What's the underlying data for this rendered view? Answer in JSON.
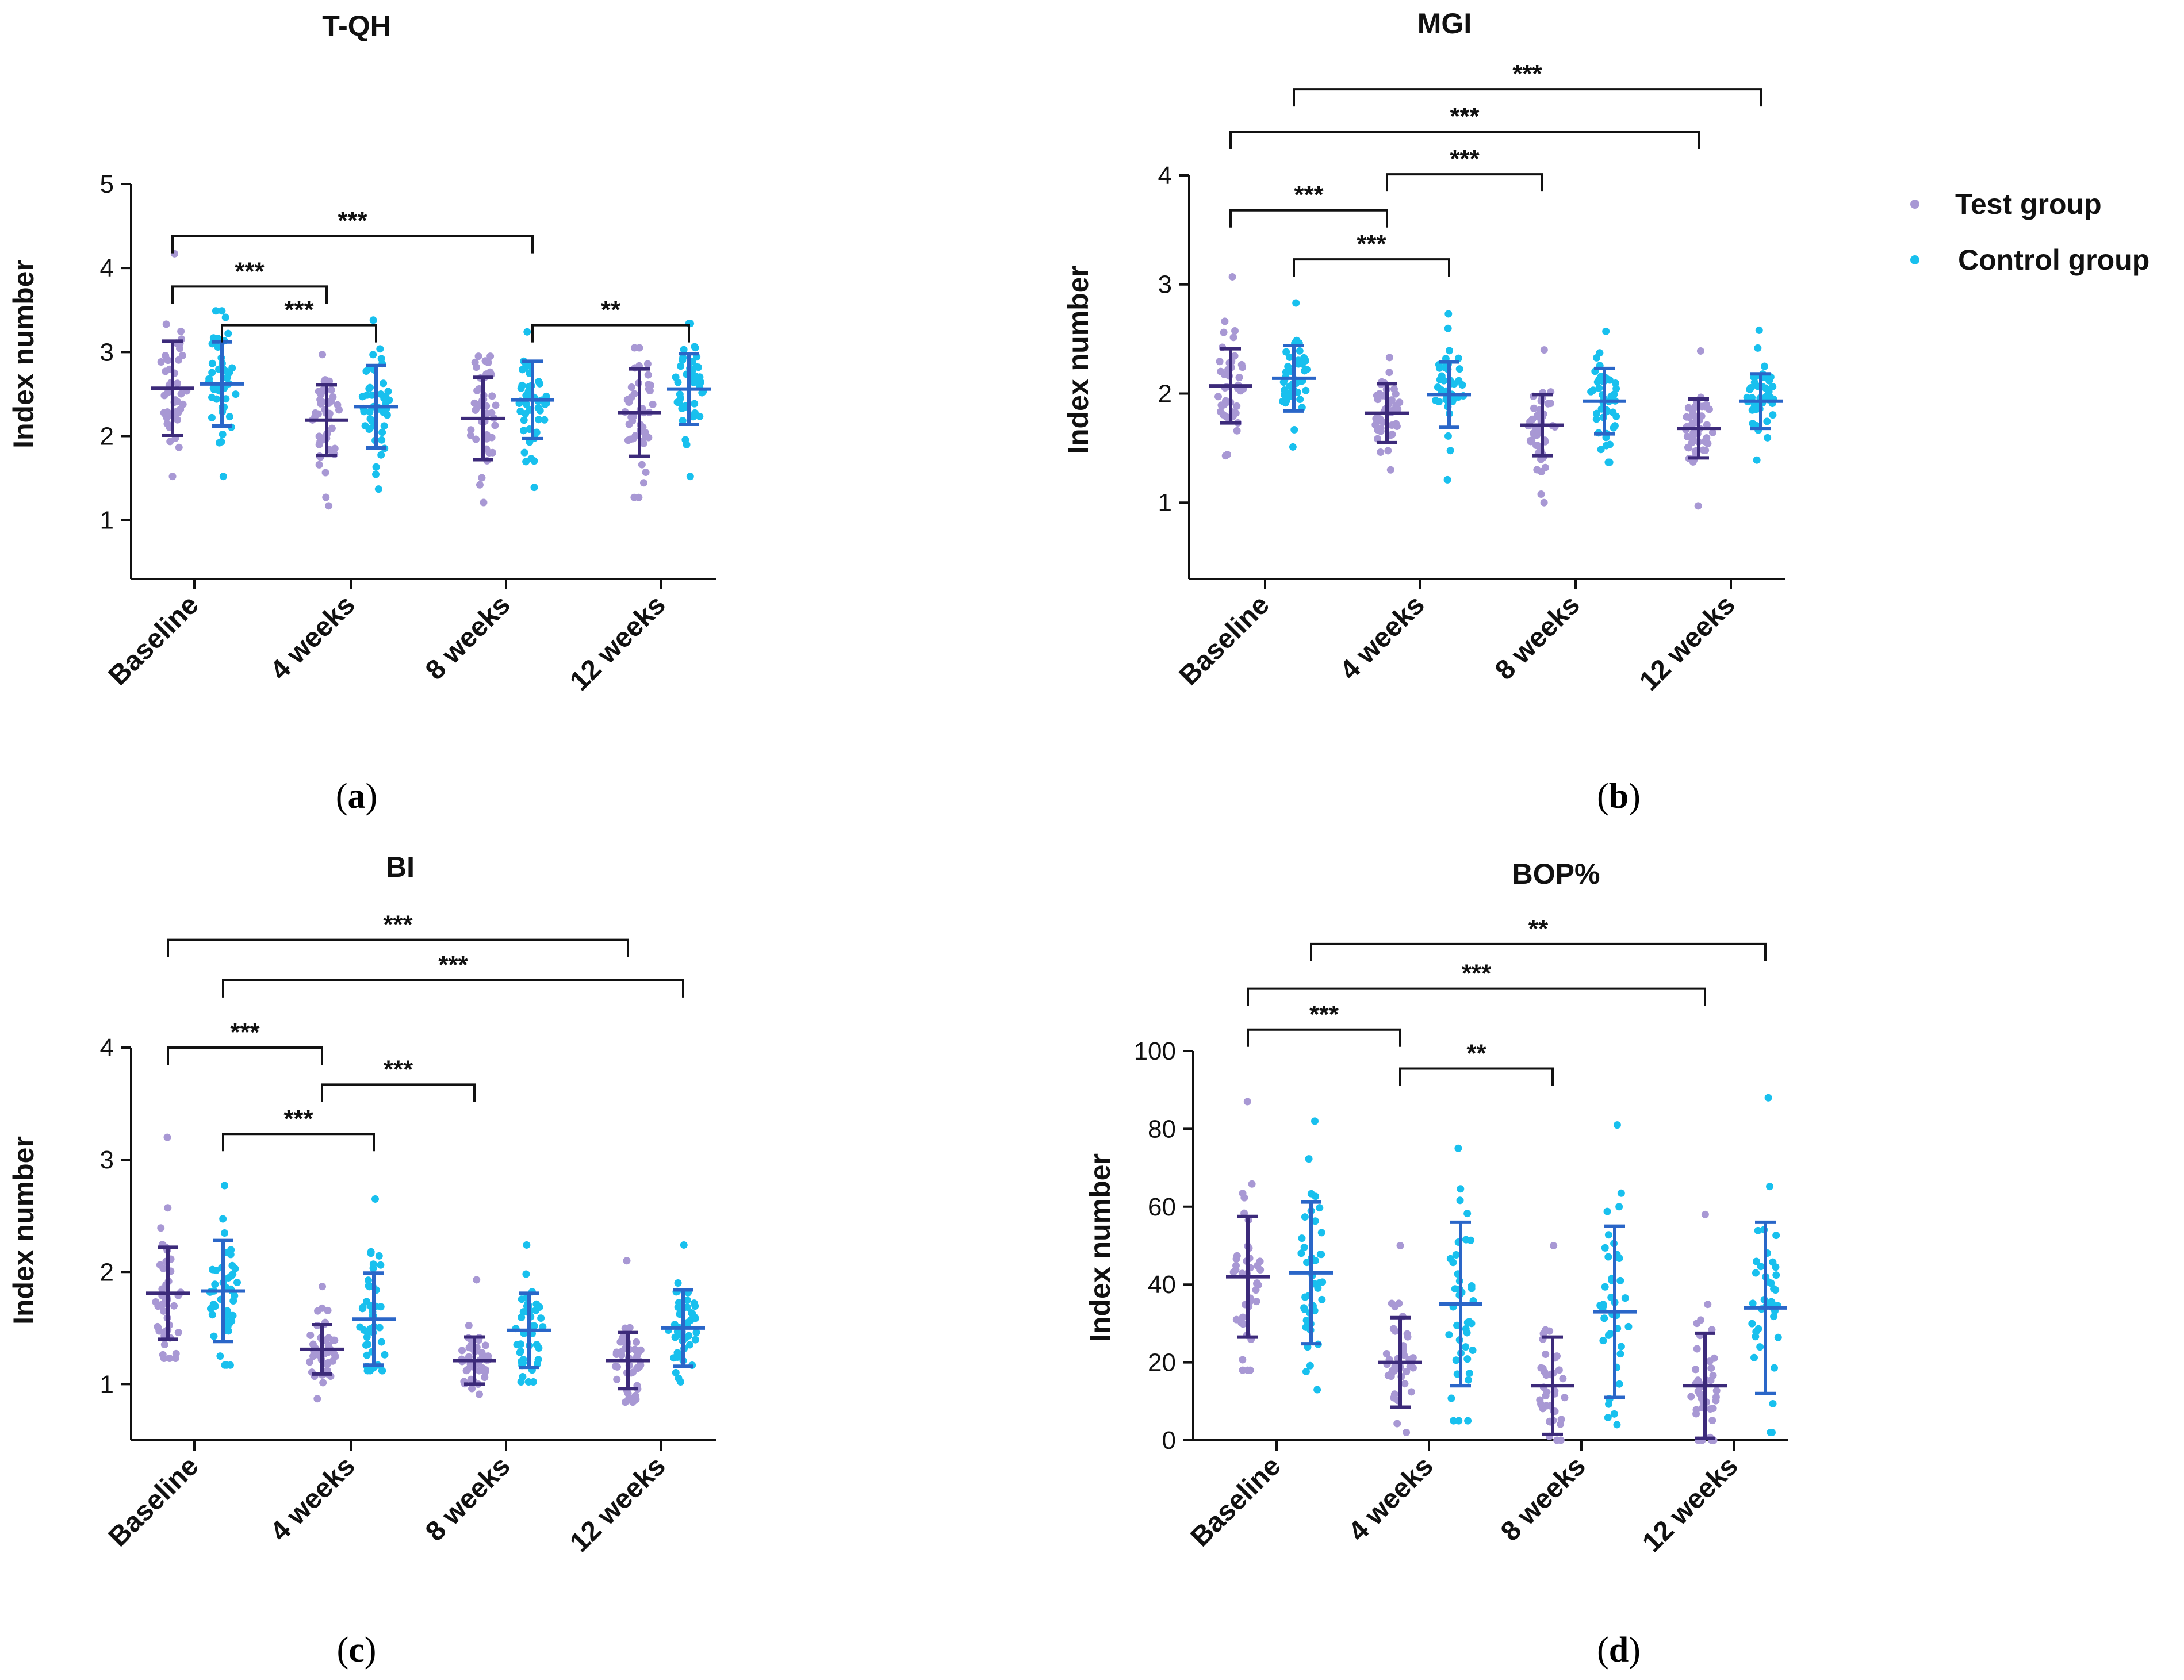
{
  "legend": {
    "items": [
      {
        "label": "Test group",
        "color": "#a898d4",
        "mean_color": "#3c2a7a"
      },
      {
        "label": "Control group",
        "color": "#18c0ee",
        "mean_color": "#2a66c8"
      }
    ]
  },
  "chart_data": [
    {
      "id": "a",
      "caption": "a",
      "type": "scatter",
      "title": "T-QH",
      "ylabel": "Index number",
      "ylim": [
        0.3,
        5
      ],
      "yticks": [
        1,
        2,
        3,
        4,
        5
      ],
      "categories": [
        "Baseline",
        "4 weeks",
        "8 weeks",
        "12 weeks"
      ],
      "series": [
        {
          "name": "Test group",
          "mean": [
            2.57,
            2.19,
            2.21,
            2.28
          ],
          "sd": [
            0.56,
            0.42,
            0.49,
            0.52
          ],
          "min": [
            1.52,
            1.17,
            1.21,
            1.27
          ],
          "max": [
            4.17,
            2.97,
            2.95,
            3.05
          ]
        },
        {
          "name": "Control group",
          "mean": [
            2.62,
            2.35,
            2.43,
            2.56
          ],
          "sd": [
            0.5,
            0.49,
            0.46,
            0.42
          ],
          "min": [
            1.52,
            1.37,
            1.39,
            1.52
          ],
          "max": [
            3.49,
            3.38,
            3.24,
            3.34
          ]
        }
      ],
      "significance": [
        {
          "label": "***",
          "from": [
            0,
            0
          ],
          "to": [
            2,
            1
          ],
          "y": 4.38
        },
        {
          "label": "***",
          "from": [
            0,
            0
          ],
          "to": [
            1,
            0
          ],
          "y": 3.78
        },
        {
          "label": "***",
          "from": [
            0,
            1
          ],
          "to": [
            1,
            1
          ],
          "y": 3.32
        },
        {
          "label": "**",
          "from": [
            2,
            1
          ],
          "to": [
            3,
            1
          ],
          "y": 3.32
        }
      ]
    },
    {
      "id": "b",
      "caption": "b",
      "type": "scatter",
      "title": "MGI",
      "ylabel": "Index number",
      "ylim": [
        0.3,
        4
      ],
      "yticks": [
        1,
        2,
        3,
        4
      ],
      "categories": [
        "Baseline",
        "4 weeks",
        "8 weeks",
        "12 weeks"
      ],
      "series": [
        {
          "name": "Test group",
          "mean": [
            2.07,
            1.82,
            1.71,
            1.68
          ],
          "sd": [
            0.34,
            0.27,
            0.28,
            0.27
          ],
          "min": [
            1.43,
            1.3,
            1.0,
            0.97
          ],
          "max": [
            3.07,
            2.33,
            2.4,
            2.39
          ]
        },
        {
          "name": "Control group",
          "mean": [
            2.14,
            1.99,
            1.93,
            1.93
          ],
          "sd": [
            0.3,
            0.3,
            0.3,
            0.25
          ],
          "min": [
            1.51,
            1.21,
            1.37,
            1.39
          ],
          "max": [
            2.83,
            2.73,
            2.57,
            2.58
          ]
        }
      ],
      "significance": [
        {
          "label": "***",
          "from": [
            0,
            1
          ],
          "to": [
            3,
            1
          ],
          "y": 4.79
        },
        {
          "label": "***",
          "from": [
            0,
            0
          ],
          "to": [
            3,
            0
          ],
          "y": 4.4
        },
        {
          "label": "***",
          "from": [
            1,
            0
          ],
          "to": [
            2,
            0
          ],
          "y": 4.01
        },
        {
          "label": "***",
          "from": [
            0,
            0
          ],
          "to": [
            1,
            0
          ],
          "y": 3.68
        },
        {
          "label": "***",
          "from": [
            0,
            1
          ],
          "to": [
            1,
            1
          ],
          "y": 3.23
        }
      ]
    },
    {
      "id": "c",
      "caption": "c",
      "type": "scatter",
      "title": "BI",
      "ylabel": "Index number",
      "ylim": [
        0.5,
        4
      ],
      "yticks": [
        1,
        2,
        3,
        4
      ],
      "categories": [
        "Baseline",
        "4 weeks",
        "8 weeks",
        "12 weeks"
      ],
      "series": [
        {
          "name": "Test group",
          "mean": [
            1.81,
            1.31,
            1.21,
            1.21
          ],
          "sd": [
            0.41,
            0.22,
            0.21,
            0.25
          ],
          "min": [
            1.23,
            0.87,
            0.91,
            0.84
          ],
          "max": [
            3.2,
            1.87,
            1.93,
            2.1
          ]
        },
        {
          "name": "Control group",
          "mean": [
            1.83,
            1.58,
            1.48,
            1.5
          ],
          "sd": [
            0.45,
            0.41,
            0.33,
            0.34
          ],
          "min": [
            1.17,
            1.12,
            1.02,
            1.02
          ],
          "max": [
            2.77,
            2.65,
            2.24,
            2.24
          ]
        }
      ],
      "significance": [
        {
          "label": "***",
          "from": [
            0,
            0
          ],
          "to": [
            3,
            0
          ],
          "y": 4.96
        },
        {
          "label": "***",
          "from": [
            0,
            1
          ],
          "to": [
            3,
            1
          ],
          "y": 4.6
        },
        {
          "label": "***",
          "from": [
            0,
            0
          ],
          "to": [
            1,
            0
          ],
          "y": 4.0
        },
        {
          "label": "***",
          "from": [
            1,
            0
          ],
          "to": [
            2,
            0
          ],
          "y": 3.67
        },
        {
          "label": "***",
          "from": [
            0,
            1
          ],
          "to": [
            1,
            1
          ],
          "y": 3.23
        }
      ]
    },
    {
      "id": "d",
      "caption": "d",
      "type": "scatter",
      "title": "BOP%",
      "ylabel": "Index number",
      "ylim": [
        0,
        100
      ],
      "yticks": [
        0,
        20,
        40,
        60,
        80,
        100
      ],
      "categories": [
        "Baseline",
        "4 weeks",
        "8 weeks",
        "12 weeks"
      ],
      "series": [
        {
          "name": "Test group",
          "mean": [
            42,
            20,
            14,
            14
          ],
          "sd": [
            15.5,
            11.5,
            12.5,
            13.5
          ],
          "min": [
            18,
            2,
            0,
            0
          ],
          "max": [
            87,
            50,
            50,
            58
          ]
        },
        {
          "name": "Control group",
          "mean": [
            43,
            35,
            33,
            34
          ],
          "sd": [
            18.2,
            21,
            22,
            22
          ],
          "min": [
            13,
            5,
            4,
            2
          ],
          "max": [
            82,
            75,
            81,
            88
          ]
        }
      ],
      "significance": [
        {
          "label": "**",
          "from": [
            0,
            1
          ],
          "to": [
            3,
            1
          ],
          "y": 127.5
        },
        {
          "label": "***",
          "from": [
            0,
            0
          ],
          "to": [
            3,
            0
          ],
          "y": 116
        },
        {
          "label": "***",
          "from": [
            0,
            0
          ],
          "to": [
            1,
            0
          ],
          "y": 105.5
        },
        {
          "label": "**",
          "from": [
            1,
            0
          ],
          "to": [
            2,
            0
          ],
          "y": 95.5
        }
      ]
    }
  ]
}
